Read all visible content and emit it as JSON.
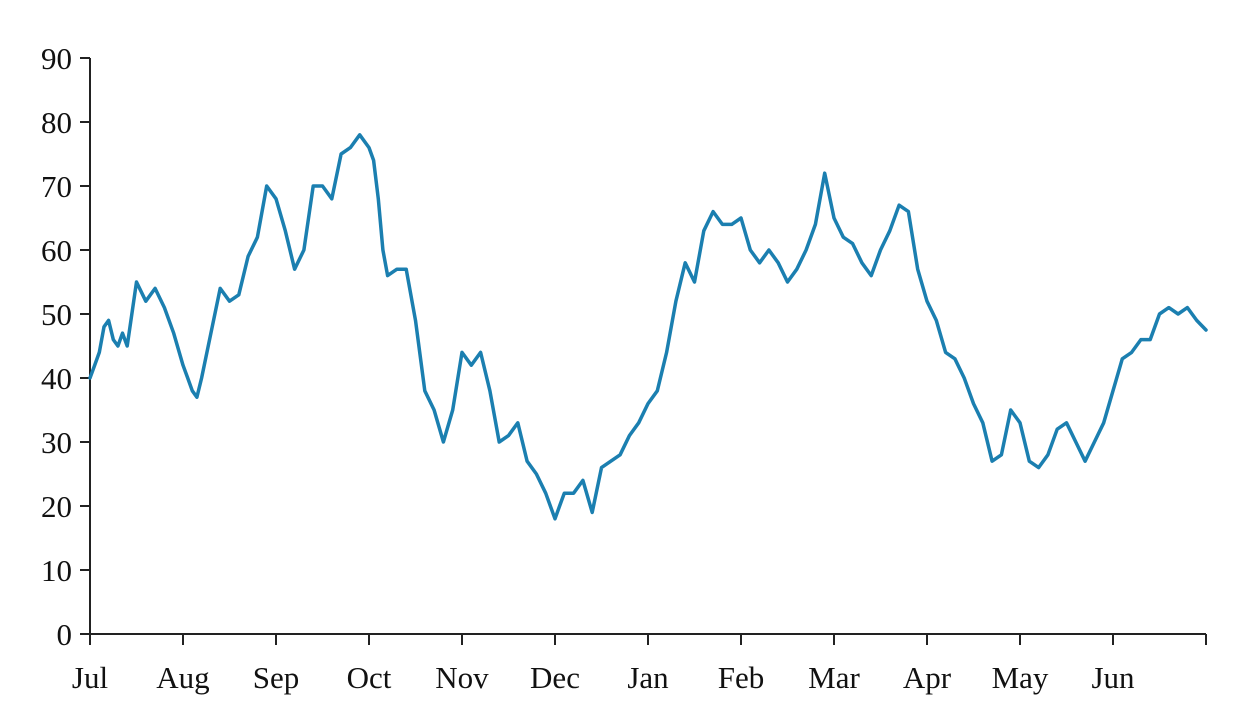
{
  "chart_data": {
    "type": "line",
    "title": "",
    "xlabel": "",
    "ylabel": "",
    "ylim": [
      0,
      90
    ],
    "yticks": [
      0,
      10,
      20,
      30,
      40,
      50,
      60,
      70,
      80,
      90
    ],
    "ytick_labels": [
      "0",
      "10",
      "20",
      "30",
      "40",
      "50",
      "60",
      "70",
      "80",
      "90"
    ],
    "xtick_labels": [
      "Jul",
      "Aug",
      "Sep",
      "Oct",
      "Nov",
      "Dec",
      "Jan",
      "Feb",
      "Mar",
      "Apr",
      "May",
      "Jun"
    ],
    "xlim_months": [
      0,
      12
    ],
    "grid": false,
    "line_color": "#1b7fb0",
    "series": [
      {
        "x": [
          0.0,
          0.05,
          0.1,
          0.15,
          0.2,
          0.25,
          0.3,
          0.35,
          0.4,
          0.5,
          0.6,
          0.7,
          0.8,
          0.9,
          1.0,
          1.05,
          1.1,
          1.15,
          1.2,
          1.3,
          1.4,
          1.5,
          1.6,
          1.7,
          1.8,
          1.9,
          2.0,
          2.1,
          2.2,
          2.3,
          2.4,
          2.5,
          2.6,
          2.7,
          2.8,
          2.9,
          3.0,
          3.05,
          3.1,
          3.15,
          3.2,
          3.3,
          3.4,
          3.5,
          3.6,
          3.7,
          3.8,
          3.9,
          4.0,
          4.1,
          4.2,
          4.3,
          4.4,
          4.5,
          4.6,
          4.7,
          4.8,
          4.9,
          5.0,
          5.05,
          5.1,
          5.2,
          5.3,
          5.4,
          5.5,
          5.6,
          5.7,
          5.8,
          5.9,
          6.0,
          6.1,
          6.2,
          6.3,
          6.4,
          6.5,
          6.6,
          6.7,
          6.8,
          6.9,
          7.0,
          7.1,
          7.2,
          7.3,
          7.4,
          7.5,
          7.6,
          7.7,
          7.8,
          7.9,
          8.0,
          8.1,
          8.2,
          8.3,
          8.4,
          8.5,
          8.6,
          8.7,
          8.8,
          8.9,
          9.0,
          9.1,
          9.2,
          9.3,
          9.4,
          9.5,
          9.6,
          9.7,
          9.8,
          9.9,
          10.0,
          10.1,
          10.2,
          10.3,
          10.4,
          10.5,
          10.6,
          10.7,
          10.8,
          10.9,
          11.0,
          11.1,
          11.2,
          11.3,
          11.4,
          11.5,
          11.6,
          11.7,
          11.8,
          11.9,
          12.0
        ],
        "y": [
          40,
          42,
          44,
          48,
          49,
          46,
          45,
          47,
          45,
          55,
          52,
          54,
          51,
          47,
          42,
          40,
          38,
          37,
          40,
          47,
          54,
          52,
          53,
          59,
          62,
          70,
          68,
          63,
          57,
          60,
          70,
          70,
          68,
          75,
          76,
          78,
          76,
          74,
          68,
          60,
          56,
          57,
          57,
          49,
          38,
          35,
          30,
          35,
          44,
          42,
          44,
          38,
          30,
          31,
          33,
          27,
          25,
          22,
          18,
          20,
          22,
          22,
          24,
          19,
          26,
          27,
          28,
          31,
          33,
          36,
          38,
          44,
          52,
          58,
          55,
          63,
          66,
          64,
          64,
          65,
          60,
          58,
          60,
          58,
          55,
          57,
          60,
          64,
          72,
          65,
          62,
          61,
          58,
          56,
          60,
          63,
          67,
          66,
          57,
          52,
          49,
          44,
          43,
          40,
          36,
          33,
          27,
          28,
          35,
          33,
          27,
          26,
          28,
          32,
          33,
          30,
          27,
          30,
          33,
          38,
          43,
          44,
          46,
          46,
          50,
          51,
          50,
          51,
          49,
          47.5
        ]
      }
    ]
  }
}
